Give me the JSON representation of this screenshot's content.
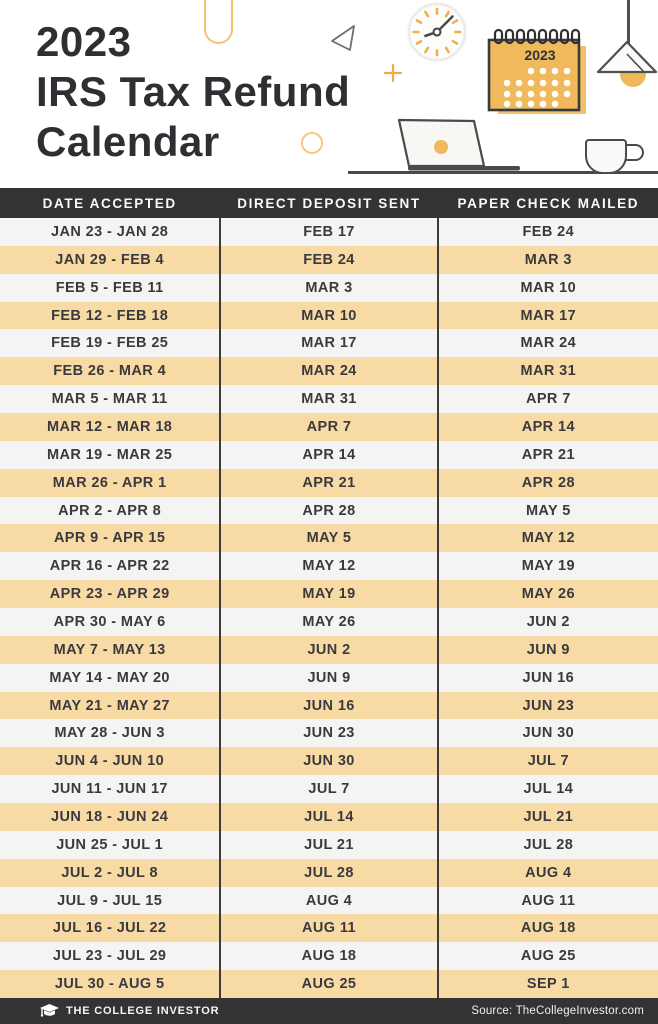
{
  "page": {
    "accent_orange": "#EFB95C",
    "stripe_orange": "#F8DAA5",
    "bar_dark": "#333333",
    "light_row": "#F4F4F5"
  },
  "header": {
    "title_lines": [
      "2023",
      "IRS Tax Refund",
      "Calendar"
    ],
    "calendar_icon_year": "2023"
  },
  "chart_data": {
    "type": "table",
    "title": "2023 IRS Tax Refund Calendar",
    "columns": [
      "DATE ACCEPTED",
      "DIRECT DEPOSIT SENT",
      "PAPER CHECK MAILED"
    ],
    "rows": [
      [
        "JAN 23 - JAN 28",
        "FEB 17",
        "FEB 24"
      ],
      [
        "JAN 29 - FEB 4",
        "FEB 24",
        "MAR 3"
      ],
      [
        "FEB 5 - FEB 11",
        "MAR 3",
        "MAR 10"
      ],
      [
        "FEB 12 - FEB 18",
        "MAR 10",
        "MAR 17"
      ],
      [
        "FEB 19 - FEB 25",
        "MAR 17",
        "MAR 24"
      ],
      [
        "FEB 26 - MAR 4",
        "MAR 24",
        "MAR 31"
      ],
      [
        "MAR 5 - MAR 11",
        "MAR 31",
        "APR 7"
      ],
      [
        "MAR 12 - MAR 18",
        "APR 7",
        "APR 14"
      ],
      [
        "MAR 19 - MAR 25",
        "APR 14",
        "APR 21"
      ],
      [
        "MAR 26 - APR 1",
        "APR 21",
        "APR 28"
      ],
      [
        "APR 2 - APR 8",
        "APR 28",
        "MAY 5"
      ],
      [
        "APR 9 - APR 15",
        "MAY 5",
        "MAY 12"
      ],
      [
        "APR 16 - APR 22",
        "MAY 12",
        "MAY 19"
      ],
      [
        "APR 23 - APR 29",
        "MAY 19",
        "MAY 26"
      ],
      [
        "APR 30 - MAY 6",
        "MAY 26",
        "JUN 2"
      ],
      [
        "MAY 7 - MAY 13",
        "JUN 2",
        "JUN 9"
      ],
      [
        "MAY 14 - MAY 20",
        "JUN 9",
        "JUN 16"
      ],
      [
        "MAY 21 - MAY 27",
        "JUN 16",
        "JUN 23"
      ],
      [
        "MAY 28 - JUN 3",
        "JUN 23",
        "JUN 30"
      ],
      [
        "JUN 4 - JUN 10",
        "JUN 30",
        "JUL 7"
      ],
      [
        "JUN 11 - JUN 17",
        "JUL 7",
        "JUL 14"
      ],
      [
        "JUN 18 - JUN 24",
        "JUL 14",
        "JUL 21"
      ],
      [
        "JUN 25 - JUL 1",
        "JUL 21",
        "JUL 28"
      ],
      [
        "JUL 2 - JUL 8",
        "JUL 28",
        "AUG 4"
      ],
      [
        "JUL 9 - JUL 15",
        "AUG 4",
        "AUG 11"
      ],
      [
        "JUL 16 - JUL 22",
        "AUG 11",
        "AUG 18"
      ],
      [
        "JUL 23 - JUL 29",
        "AUG 18",
        "AUG 25"
      ],
      [
        "JUL 30 - AUG 5",
        "AUG 25",
        "SEP 1"
      ]
    ]
  },
  "footer": {
    "brand": "THE COLLEGE INVESTOR",
    "source": "Source: TheCollegeInvestor.com"
  }
}
